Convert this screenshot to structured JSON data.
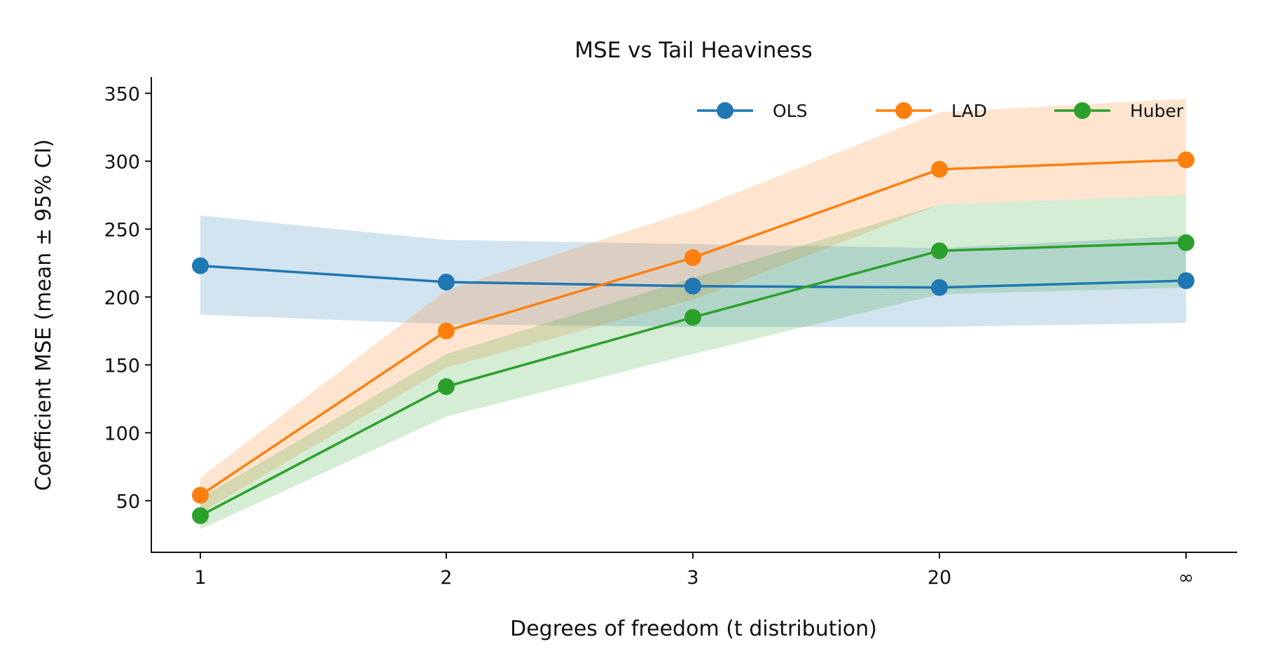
{
  "chart_data": {
    "type": "line",
    "title": "MSE vs Tail Heaviness",
    "xlabel": "Degrees of freedom (t distribution)",
    "ylabel": "Coefficient MSE (mean ± 95% CI)",
    "categories": [
      "1",
      "2",
      "3",
      "20",
      "∞"
    ],
    "ylim": [
      12,
      362
    ],
    "yticks": [
      50,
      100,
      150,
      200,
      250,
      300,
      350
    ],
    "grid": false,
    "legend_position": "top-right",
    "series": [
      {
        "name": "OLS",
        "color": "#1f77b4",
        "values": [
          223,
          211,
          208,
          207,
          212
        ],
        "ci_low": [
          187,
          180,
          178,
          178,
          181
        ],
        "ci_high": [
          260,
          242,
          239,
          236,
          245
        ]
      },
      {
        "name": "LAD",
        "color": "#ff7f0e",
        "values": [
          54,
          175,
          229,
          294,
          301
        ],
        "ci_low": [
          41,
          148,
          198,
          268,
          275
        ],
        "ci_high": [
          67,
          205,
          264,
          336,
          346
        ]
      },
      {
        "name": "Huber",
        "color": "#2ca02c",
        "values": [
          39,
          134,
          185,
          234,
          240
        ],
        "ci_low": [
          29,
          112,
          158,
          202,
          207
        ],
        "ci_high": [
          52,
          158,
          214,
          268,
          275
        ]
      }
    ]
  }
}
